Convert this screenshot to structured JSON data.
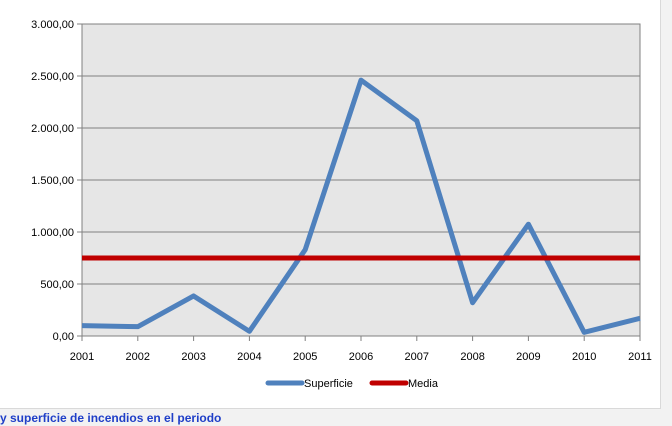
{
  "caption": "y superficie de incendios en el periodo",
  "chart_data": {
    "type": "line",
    "title": "",
    "xlabel": "",
    "ylabel": "",
    "categories": [
      "2001",
      "2002",
      "2003",
      "2004",
      "2005",
      "2006",
      "2007",
      "2008",
      "2009",
      "2010",
      "2011"
    ],
    "ylim": [
      0,
      3000
    ],
    "y_ticks": [
      0,
      500,
      1000,
      1500,
      2000,
      2500,
      3000
    ],
    "y_tick_labels": [
      "0,00",
      "500,00",
      "1.000,00",
      "1.500,00",
      "2.000,00",
      "2.500,00",
      "3.000,00"
    ],
    "grid": true,
    "legend_position": "bottom",
    "plot_background": "#e6e6e6",
    "series": [
      {
        "name": "Superficie",
        "color": "#4f81bd",
        "values": [
          100,
          90,
          385,
          45,
          830,
          2460,
          2070,
          320,
          1075,
          35,
          170
        ]
      },
      {
        "name": "Media",
        "color": "#c00000",
        "values": [
          750,
          750,
          750,
          750,
          750,
          750,
          750,
          750,
          750,
          750,
          750
        ]
      }
    ]
  }
}
